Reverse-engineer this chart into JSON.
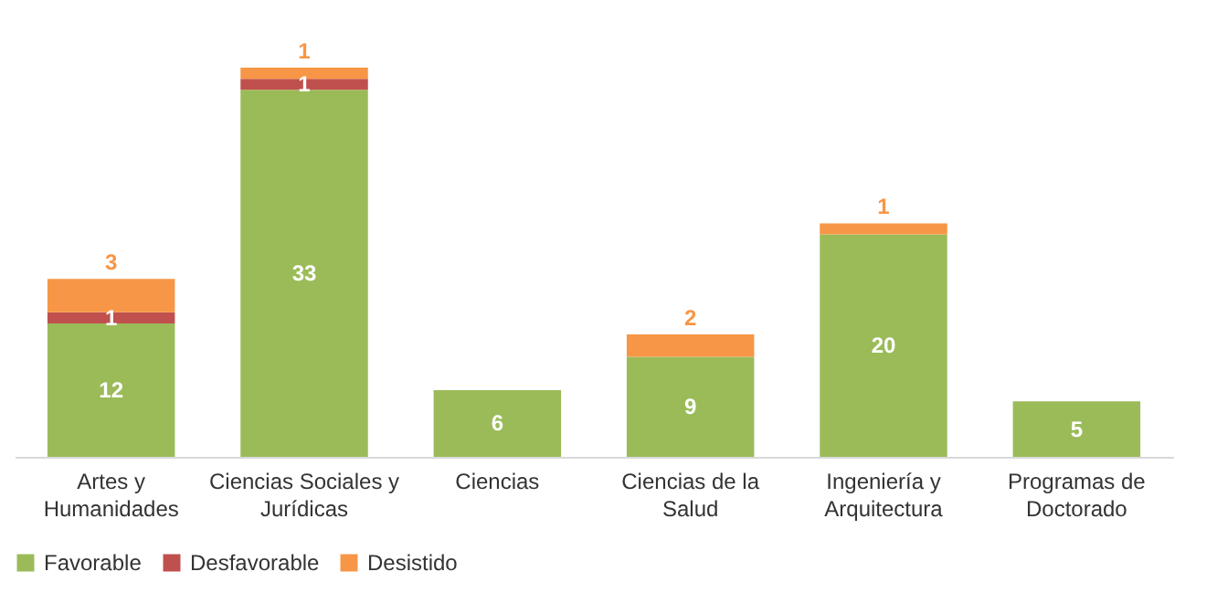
{
  "chart_data": {
    "type": "bar",
    "stacked": true,
    "data_labels": true,
    "legend": "bottom",
    "categories": [
      "Artes y Humanidades",
      "Ciencias Sociales y Jurídicas",
      "Ciencias",
      "Ciencias de la Salud",
      "Ingeniería y Arquitectura",
      "Programas de Doctorado"
    ],
    "series": [
      {
        "name": "Favorable",
        "color": "#9bbb59",
        "values": [
          12,
          33,
          6,
          9,
          20,
          5
        ]
      },
      {
        "name": "Desfavorable",
        "color": "#c0504d",
        "values": [
          1,
          1,
          null,
          null,
          null,
          null
        ]
      },
      {
        "name": "Desistido",
        "color": "#f79646",
        "values": [
          3,
          1,
          null,
          2,
          1,
          null
        ]
      }
    ]
  }
}
